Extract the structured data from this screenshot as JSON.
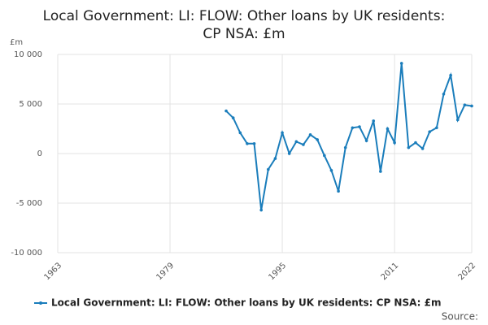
{
  "chart_data": {
    "type": "line",
    "title": "Local Government: LI: FLOW: Other loans by UK residents: CP NSA: £m",
    "y_label": "£m",
    "source": "Source:",
    "x": [
      1987,
      1988,
      1989,
      1990,
      1991,
      1992,
      1993,
      1994,
      1995,
      1996,
      1997,
      1998,
      1999,
      2000,
      2001,
      2002,
      2003,
      2004,
      2005,
      2006,
      2007,
      2008,
      2009,
      2010,
      2011,
      2012,
      2013,
      2014,
      2015,
      2016,
      2017,
      2018,
      2019,
      2020,
      2021,
      2022
    ],
    "series": [
      {
        "name": "Local Government: LI: FLOW: Other loans by UK residents: CP NSA: £m",
        "color": "#1a7dbb",
        "values": [
          4300,
          3600,
          2100,
          1000,
          1000,
          -5700,
          -1600,
          -500,
          2100,
          0,
          1200,
          900,
          1900,
          1400,
          -200,
          -1700,
          -3800,
          600,
          2600,
          2700,
          1300,
          3300,
          -1800,
          2500,
          1100,
          9100,
          600,
          1100,
          500,
          2200,
          2600,
          6000,
          7900,
          3400,
          4900,
          4800
        ]
      }
    ],
    "xlim": [
      1963,
      2022
    ],
    "xticks": [
      1963,
      1979,
      1995,
      2011,
      2022
    ],
    "ylim": [
      -10000,
      10000
    ],
    "yticks": [
      {
        "value": -10000,
        "label": "-10 000"
      },
      {
        "value": -5000,
        "label": "-5 000"
      },
      0,
      {
        "value": 5000,
        "label": "5 000"
      },
      {
        "value": 10000,
        "label": "10 000"
      }
    ],
    "grid": true
  }
}
